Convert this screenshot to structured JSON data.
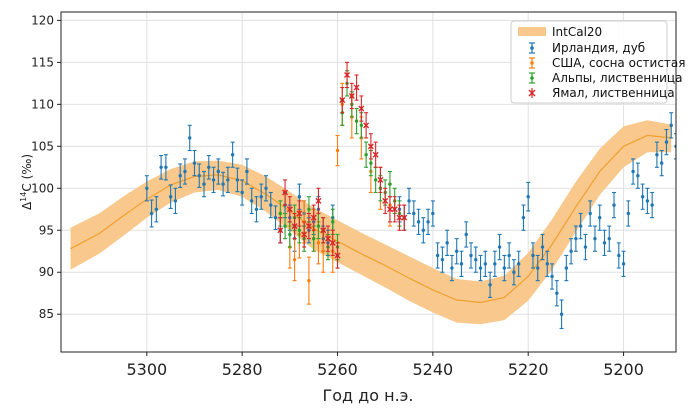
{
  "chart_data": {
    "type": "scatter",
    "title": "",
    "xlabel": "Год до н.э.",
    "ylabel_main": "Δ",
    "ylabel_sup": "14",
    "ylabel_rest": "C (‰)",
    "xlim": [
      5318,
      5189
    ],
    "ylim": [
      80.5,
      121
    ],
    "x_ticks": [
      5300,
      5280,
      5260,
      5240,
      5220,
      5200
    ],
    "x_tick_labels": [
      "5300",
      "5280",
      "5260",
      "5240",
      "5220",
      "5200"
    ],
    "y_ticks": [
      85,
      90,
      95,
      100,
      105,
      110,
      115,
      120
    ],
    "y_tick_labels": [
      "85",
      "90",
      "95",
      "100",
      "105",
      "110",
      "115",
      "120"
    ],
    "grid": true,
    "legend_position": "top-right",
    "band": {
      "name": "IntCal20",
      "color": "#f8c88c",
      "line_color": "#f0a030",
      "x": [
        5316,
        5310,
        5305,
        5300,
        5295,
        5290,
        5285,
        5280,
        5275,
        5270,
        5265,
        5260,
        5255,
        5250,
        5245,
        5240,
        5235,
        5230,
        5225,
        5220,
        5215,
        5210,
        5205,
        5200,
        5195,
        5190
      ],
      "mean": [
        92.8,
        94.6,
        96.7,
        98.7,
        100.4,
        101.4,
        101.6,
        100.9,
        99.3,
        97.3,
        95.2,
        93.7,
        92.2,
        90.8,
        89.3,
        87.9,
        86.7,
        86.4,
        87.0,
        89.5,
        93.3,
        97.8,
        102.0,
        105.0,
        106.3,
        106.0
      ],
      "upper": [
        95.3,
        97.0,
        99.0,
        100.8,
        102.3,
        103.2,
        103.3,
        102.8,
        101.4,
        99.6,
        97.7,
        96.2,
        94.7,
        93.3,
        91.9,
        90.5,
        89.2,
        88.9,
        89.6,
        92.3,
        96.3,
        100.8,
        104.7,
        107.4,
        108.1,
        107.6
      ],
      "lower": [
        90.3,
        92.2,
        94.3,
        96.5,
        98.3,
        99.5,
        99.8,
        99.0,
        97.2,
        95.0,
        92.7,
        91.2,
        89.7,
        88.2,
        86.6,
        85.2,
        84.0,
        83.8,
        84.3,
        86.6,
        90.3,
        94.8,
        99.2,
        102.5,
        104.3,
        104.3
      ]
    },
    "series": [
      {
        "name": "Ирландия, дуб",
        "color": "#1f77b4",
        "marker": "dot",
        "points": [
          [
            5300,
            100,
            1.5
          ],
          [
            5299,
            97,
            1.6
          ],
          [
            5298,
            97.5,
            1.5
          ],
          [
            5297,
            102.5,
            1.4
          ],
          [
            5296,
            102.5,
            1.5
          ],
          [
            5295,
            99,
            1.4
          ],
          [
            5294,
            98.5,
            1.5
          ],
          [
            5293,
            101.5,
            1.4
          ],
          [
            5292,
            102,
            1.5
          ],
          [
            5291,
            106,
            1.5
          ],
          [
            5290,
            103,
            1.5
          ],
          [
            5289,
            101.5,
            1.4
          ],
          [
            5288,
            100.5,
            1.5
          ],
          [
            5287,
            102.5,
            1.4
          ],
          [
            5286,
            101,
            1.5
          ],
          [
            5285,
            102,
            1.5
          ],
          [
            5284,
            100.5,
            1.4
          ],
          [
            5283,
            101,
            1.5
          ],
          [
            5282,
            104,
            1.5
          ],
          [
            5281,
            101,
            1.4
          ],
          [
            5280,
            99.5,
            1.5
          ],
          [
            5279,
            102,
            1.5
          ],
          [
            5278,
            98.5,
            1.5
          ],
          [
            5277,
            97.5,
            1.5
          ],
          [
            5276,
            99,
            1.5
          ],
          [
            5275,
            100,
            1.5
          ],
          [
            5274,
            98,
            1.5
          ],
          [
            5273,
            96.5,
            1.4
          ],
          [
            5272,
            95,
            1.5
          ],
          [
            5271,
            98,
            1.5
          ],
          [
            5270,
            96.5,
            1.5
          ],
          [
            5269,
            94,
            1.5
          ],
          [
            5268,
            99,
            1.5
          ],
          [
            5267,
            97,
            1.5
          ],
          [
            5266,
            95,
            1.5
          ],
          [
            5265,
            96,
            1.5
          ],
          [
            5264,
            97.5,
            1.5
          ],
          [
            5263,
            94,
            1.5
          ],
          [
            5262,
            93.5,
            1.5
          ],
          [
            5261,
            96.5,
            1.5
          ],
          [
            5260,
            92,
            1.5
          ],
          [
            5247,
            97.5,
            1.5
          ],
          [
            5246,
            96.5,
            1.5
          ],
          [
            5245,
            98.5,
            1.5
          ],
          [
            5244,
            97,
            1.5
          ],
          [
            5243,
            96,
            1.5
          ],
          [
            5242,
            95,
            1.5
          ],
          [
            5241,
            96,
            1.5
          ],
          [
            5240,
            97,
            1.5
          ],
          [
            5239,
            92,
            1.5
          ],
          [
            5238,
            91.5,
            1.5
          ],
          [
            5237,
            93.5,
            1.5
          ],
          [
            5236,
            90.5,
            1.5
          ],
          [
            5235,
            92.5,
            1.5
          ],
          [
            5234,
            91,
            1.5
          ],
          [
            5233,
            94.5,
            1.5
          ],
          [
            5232,
            92,
            1.5
          ],
          [
            5231,
            91.5,
            1.5
          ],
          [
            5230,
            90.5,
            1.5
          ],
          [
            5229,
            91,
            1.5
          ],
          [
            5228,
            88.5,
            1.5
          ],
          [
            5227,
            91,
            1.5
          ],
          [
            5226,
            93,
            1.5
          ],
          [
            5225,
            90.5,
            1.5
          ],
          [
            5224,
            92,
            1.5
          ],
          [
            5223,
            90,
            1.5
          ],
          [
            5222,
            91,
            1.5
          ],
          [
            5221,
            96.5,
            1.5
          ],
          [
            5220,
            99,
            1.7
          ],
          [
            5219,
            92,
            1.5
          ],
          [
            5218,
            90.5,
            1.5
          ],
          [
            5217,
            93,
            1.5
          ],
          [
            5216,
            91,
            1.5
          ],
          [
            5215,
            89.5,
            1.5
          ],
          [
            5214,
            87.5,
            1.5
          ],
          [
            5213,
            85,
            1.7
          ],
          [
            5212,
            90.5,
            1.5
          ],
          [
            5211,
            92.5,
            1.5
          ],
          [
            5210,
            94,
            1.5
          ],
          [
            5209,
            95.5,
            1.5
          ],
          [
            5208,
            93,
            1.5
          ],
          [
            5207,
            97,
            1.5
          ],
          [
            5206,
            94,
            1.5
          ],
          [
            5205,
            96.5,
            1.5
          ],
          [
            5204,
            93.5,
            1.5
          ],
          [
            5203,
            94,
            1.5
          ],
          [
            5202,
            98,
            1.5
          ],
          [
            5201,
            92,
            1.5
          ],
          [
            5200,
            91,
            1.5
          ],
          [
            5199,
            97,
            1.5
          ],
          [
            5198,
            102,
            1.5
          ],
          [
            5197,
            101.5,
            1.5
          ],
          [
            5196,
            99,
            1.5
          ],
          [
            5195,
            98.5,
            1.5
          ],
          [
            5194,
            98,
            1.5
          ],
          [
            5193,
            104,
            1.5
          ],
          [
            5192,
            103,
            1.5
          ],
          [
            5191,
            105.5,
            1.5
          ],
          [
            5190,
            107.5,
            1.5
          ],
          [
            5189,
            105,
            1.5
          ]
        ]
      },
      {
        "name": "США, сосна остистая",
        "color": "#ff7f0e",
        "marker": "dot",
        "points": [
          [
            5270,
            93,
            2.5
          ],
          [
            5269,
            91.5,
            2.5
          ],
          [
            5268,
            94.5,
            2.8
          ],
          [
            5267,
            96,
            2.5
          ],
          [
            5266,
            89,
            2.8
          ],
          [
            5265,
            95,
            2.5
          ],
          [
            5264,
            93.5,
            2.5
          ],
          [
            5263,
            92.5,
            2.5
          ],
          [
            5261,
            92.5,
            2.5
          ],
          [
            5260,
            104.5,
            1.8
          ],
          [
            5259,
            110,
            2.5
          ],
          [
            5257,
            108.5,
            2.5
          ],
          [
            5255,
            106,
            2.5
          ],
          [
            5253,
            102,
            2.5
          ],
          [
            5251,
            100,
            2.5
          ],
          [
            5249,
            98,
            2.5
          ]
        ]
      },
      {
        "name": "Альпы, лиственница",
        "color": "#2ca02c",
        "marker": "dot",
        "points": [
          [
            5272,
            97,
            1.5
          ],
          [
            5271,
            95.5,
            1.5
          ],
          [
            5270,
            94.5,
            1.5
          ],
          [
            5269,
            96.5,
            1.5
          ],
          [
            5268,
            95,
            1.5
          ],
          [
            5267,
            94,
            1.5
          ],
          [
            5266,
            97.5,
            1.5
          ],
          [
            5265,
            94,
            1.5
          ],
          [
            5264,
            95.5,
            1.5
          ],
          [
            5263,
            95,
            1.5
          ],
          [
            5262,
            93,
            1.5
          ],
          [
            5261,
            96,
            1.5
          ],
          [
            5260,
            93,
            1.5
          ],
          [
            5259,
            109,
            1.5
          ],
          [
            5258,
            112.5,
            1.5
          ],
          [
            5257,
            110,
            1.5
          ],
          [
            5256,
            108,
            1.5
          ],
          [
            5255,
            107.5,
            1.5
          ],
          [
            5254,
            104,
            1.5
          ],
          [
            5253,
            103,
            1.5
          ],
          [
            5252,
            101,
            1.5
          ],
          [
            5251,
            100,
            1.5
          ],
          [
            5250,
            99.5,
            1.5
          ],
          [
            5249,
            100.5,
            1.5
          ],
          [
            5248,
            98.5,
            1.5
          ],
          [
            5247,
            97,
            1.5
          ]
        ]
      },
      {
        "name": "Ямал, лиственница",
        "color": "#d62728",
        "marker": "cross",
        "points": [
          [
            5272,
            95,
            1.5
          ],
          [
            5271,
            99.5,
            1.5
          ],
          [
            5270,
            97.5,
            1.5
          ],
          [
            5269,
            95.5,
            1.5
          ],
          [
            5268,
            97,
            1.5
          ],
          [
            5267,
            94.5,
            1.5
          ],
          [
            5266,
            95.5,
            1.5
          ],
          [
            5265,
            96.5,
            1.5
          ],
          [
            5264,
            98.5,
            1.5
          ],
          [
            5263,
            95,
            1.5
          ],
          [
            5262,
            94,
            1.5
          ],
          [
            5261,
            93.5,
            1.5
          ],
          [
            5260,
            92,
            1.5
          ],
          [
            5259,
            110.5,
            1.5
          ],
          [
            5258,
            113.5,
            1.5
          ],
          [
            5257,
            111,
            1.5
          ],
          [
            5256,
            112,
            1.5
          ],
          [
            5255,
            109.5,
            1.5
          ],
          [
            5254,
            107.5,
            1.5
          ],
          [
            5253,
            105,
            1.5
          ],
          [
            5252,
            104,
            1.5
          ],
          [
            5251,
            101,
            1.5
          ],
          [
            5250,
            98.5,
            1.5
          ],
          [
            5249,
            97.5,
            1.5
          ],
          [
            5248,
            97.5,
            1.5
          ],
          [
            5247,
            96.5,
            1.5
          ],
          [
            5246,
            96.5,
            1.5
          ]
        ]
      }
    ]
  }
}
